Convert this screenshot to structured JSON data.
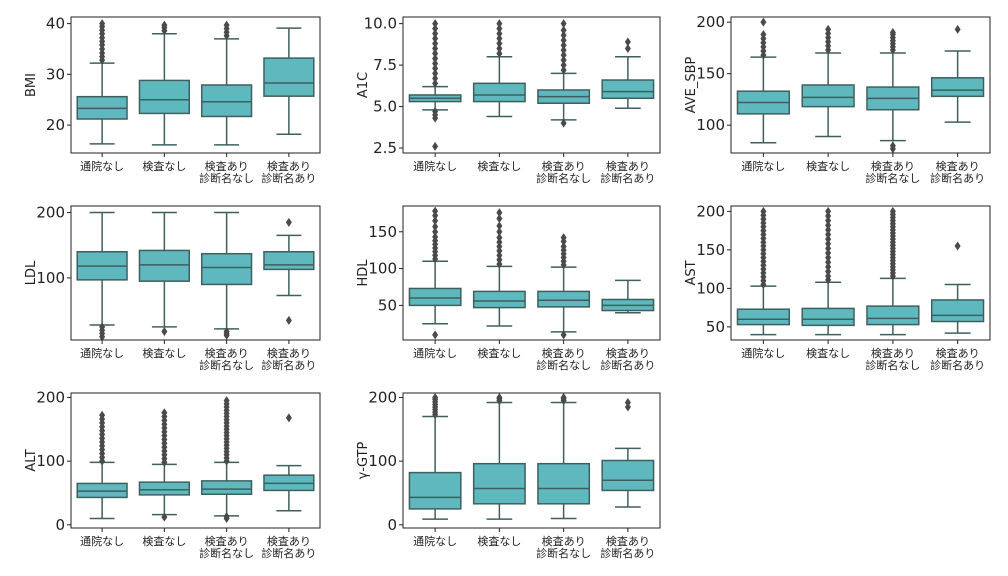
{
  "chart_data": [
    {
      "type": "boxplot",
      "ylabel": "BMI",
      "ylim": [
        14.5,
        41.3
      ],
      "yticks": [
        20,
        30,
        40
      ],
      "categories": [
        "通院なし",
        "検査なし",
        "検査あり\n診断名なし",
        "検査あり\n診断名あり"
      ],
      "boxes": [
        {
          "whislo": 16.3,
          "q1": 21.2,
          "med": 23.3,
          "q3": 25.6,
          "whishi": 32.2,
          "fliers": [
            32.8,
            33.5,
            34.2,
            35.0,
            35.8,
            36.5,
            37.2,
            38.0,
            38.7,
            39.4,
            40.0
          ]
        },
        {
          "whislo": 16.1,
          "q1": 22.3,
          "med": 25.0,
          "q3": 28.8,
          "whishi": 38.0,
          "fliers": [
            38.6,
            39.2,
            39.7
          ]
        },
        {
          "whislo": 16.1,
          "q1": 21.7,
          "med": 24.6,
          "q3": 27.9,
          "whishi": 37.0,
          "fliers": [
            37.6,
            38.3,
            39.0,
            39.7
          ]
        },
        {
          "whislo": 18.2,
          "q1": 25.7,
          "med": 28.3,
          "q3": 33.2,
          "whishi": 39.1,
          "fliers": []
        }
      ]
    },
    {
      "type": "boxplot",
      "ylabel": "A1C",
      "ylim": [
        2.2,
        10.4
      ],
      "yticks": [
        2.5,
        5.0,
        7.5,
        10.0
      ],
      "categories": [
        "通院なし",
        "検査なし",
        "検査あり\n診断名なし",
        "検査あり\n診断名あり"
      ],
      "boxes": [
        {
          "whislo": 4.8,
          "q1": 5.3,
          "med": 5.5,
          "q3": 5.7,
          "whishi": 6.2,
          "fliers": [
            2.6,
            4.3,
            4.5,
            4.7,
            6.4,
            6.7,
            7.0,
            7.3,
            7.6,
            7.9,
            8.2,
            8.5,
            8.8,
            9.1,
            9.4,
            9.7,
            10.0
          ]
        },
        {
          "whislo": 4.4,
          "q1": 5.3,
          "med": 5.7,
          "q3": 6.4,
          "whishi": 8.0,
          "fliers": [
            8.2,
            8.5,
            8.8,
            9.1,
            9.4,
            9.7,
            10.0
          ]
        },
        {
          "whislo": 4.2,
          "q1": 5.2,
          "med": 5.6,
          "q3": 6.0,
          "whishi": 7.0,
          "fliers": [
            4.0,
            7.2,
            7.5,
            7.8,
            8.1,
            8.4,
            8.7,
            9.0,
            9.3,
            9.6,
            10.0
          ]
        },
        {
          "whislo": 4.9,
          "q1": 5.5,
          "med": 5.9,
          "q3": 6.6,
          "whishi": 8.0,
          "fliers": [
            8.5,
            8.9
          ]
        }
      ]
    },
    {
      "type": "boxplot",
      "ylabel": "AVE_SBP",
      "ylim": [
        73,
        205
      ],
      "yticks": [
        100,
        150,
        200
      ],
      "categories": [
        "通院なし",
        "検査なし",
        "検査あり\n診断名なし",
        "検査あり\n診断名あり"
      ],
      "boxes": [
        {
          "whislo": 83,
          "q1": 111,
          "med": 122,
          "q3": 133,
          "whishi": 166,
          "fliers": [
            168,
            172,
            176,
            180,
            184,
            188,
            200
          ]
        },
        {
          "whislo": 89,
          "q1": 118,
          "med": 127,
          "q3": 139,
          "whishi": 170,
          "fliers": [
            173,
            177,
            181,
            185,
            189,
            193
          ]
        },
        {
          "whislo": 85,
          "q1": 115,
          "med": 126,
          "q3": 137,
          "whishi": 170,
          "fliers": [
            77,
            80,
            173,
            176,
            179,
            182,
            185,
            188,
            190
          ]
        },
        {
          "whislo": 103,
          "q1": 128,
          "med": 134,
          "q3": 146,
          "whishi": 172,
          "fliers": [
            193
          ]
        }
      ]
    },
    {
      "type": "boxplot",
      "ylabel": "LDL",
      "ylim": [
        5,
        210
      ],
      "yticks": [
        100,
        200
      ],
      "categories": [
        "通院なし",
        "検査なし",
        "検査あり\n診断名なし",
        "検査あり\n診断名あり"
      ],
      "boxes": [
        {
          "whislo": 28,
          "q1": 97,
          "med": 118,
          "q3": 140,
          "whishi": 200,
          "fliers": [
            10,
            15,
            20,
            25
          ]
        },
        {
          "whislo": 25,
          "q1": 95,
          "med": 120,
          "q3": 142,
          "whishi": 200,
          "fliers": [
            18
          ]
        },
        {
          "whislo": 22,
          "q1": 90,
          "med": 116,
          "q3": 137,
          "whishi": 200,
          "fliers": [
            12,
            15,
            18
          ]
        },
        {
          "whislo": 73,
          "q1": 113,
          "med": 120,
          "q3": 140,
          "whishi": 165,
          "fliers": [
            35,
            185
          ]
        }
      ]
    },
    {
      "type": "boxplot",
      "ylabel": "HDL",
      "ylim": [
        3,
        185
      ],
      "yticks": [
        50,
        100,
        150
      ],
      "categories": [
        "通院なし",
        "検査なし",
        "検査あり\n診断名なし",
        "検査あり\n診断名あり"
      ],
      "boxes": [
        {
          "whislo": 25,
          "q1": 50,
          "med": 60,
          "q3": 73,
          "whishi": 110,
          "fliers": [
            10,
            113,
            118,
            123,
            128,
            133,
            138,
            143,
            150,
            157,
            165,
            172,
            178
          ]
        },
        {
          "whislo": 22,
          "q1": 47,
          "med": 56,
          "q3": 69,
          "whishi": 103,
          "fliers": [
            106,
            112,
            118,
            124,
            130,
            136,
            142,
            150,
            158,
            168,
            176
          ]
        },
        {
          "whislo": 14,
          "q1": 48,
          "med": 57,
          "q3": 69,
          "whishi": 102,
          "fliers": [
            10,
            105,
            110,
            115,
            120,
            125,
            130,
            137,
            142
          ]
        },
        {
          "whislo": 40,
          "q1": 43,
          "med": 50,
          "q3": 58,
          "whishi": 84,
          "fliers": []
        }
      ]
    },
    {
      "type": "boxplot",
      "ylabel": "AST",
      "ylim": [
        33,
        207
      ],
      "yticks": [
        50,
        100,
        150,
        200
      ],
      "categories": [
        "通院なし",
        "検査なし",
        "検査あり\n診断名なし",
        "検査あり\n診断名あり"
      ],
      "boxes": [
        {
          "whislo": 40,
          "q1": 53,
          "med": 60,
          "q3": 73,
          "whishi": 103,
          "fliers": [
            105,
            110,
            115,
            120,
            125,
            130,
            135,
            140,
            145,
            150,
            155,
            160,
            165,
            170,
            175,
            180,
            185,
            190,
            195,
            200
          ]
        },
        {
          "whislo": 40,
          "q1": 52,
          "med": 60,
          "q3": 74,
          "whishi": 108,
          "fliers": [
            111,
            116,
            122,
            128,
            134,
            140,
            146,
            152,
            158,
            164,
            170,
            176,
            182,
            188,
            194,
            200
          ]
        },
        {
          "whislo": 40,
          "q1": 53,
          "med": 61,
          "q3": 77,
          "whishi": 113,
          "fliers": [
            116,
            120,
            124,
            128,
            132,
            136,
            140,
            144,
            148,
            152,
            156,
            160,
            164,
            168,
            172,
            176,
            180,
            184,
            188,
            192,
            196,
            200
          ]
        },
        {
          "whislo": 42,
          "q1": 57,
          "med": 65,
          "q3": 85,
          "whishi": 105,
          "fliers": [
            155
          ]
        }
      ]
    },
    {
      "type": "boxplot",
      "ylabel": "ALT",
      "ylim": [
        -5,
        207
      ],
      "yticks": [
        0,
        100,
        200
      ],
      "categories": [
        "通院なし",
        "検査なし",
        "検査あり\n診断名なし",
        "検査あり\n診断名あり"
      ],
      "boxes": [
        {
          "whislo": 10,
          "q1": 43,
          "med": 53,
          "q3": 65,
          "whishi": 98,
          "fliers": [
            100,
            106,
            112,
            118,
            124,
            130,
            136,
            142,
            148,
            154,
            160,
            166,
            172
          ]
        },
        {
          "whislo": 16,
          "q1": 47,
          "med": 55,
          "q3": 67,
          "whishi": 95,
          "fliers": [
            12,
            98,
            104,
            110,
            116,
            122,
            128,
            134,
            140,
            146,
            152,
            158,
            164,
            170,
            176
          ]
        },
        {
          "whislo": 14,
          "q1": 48,
          "med": 56,
          "q3": 69,
          "whishi": 98,
          "fliers": [
            10,
            13,
            100,
            105,
            110,
            115,
            120,
            125,
            130,
            135,
            140,
            145,
            150,
            155,
            160,
            165,
            170,
            175,
            180,
            185,
            190,
            195
          ]
        },
        {
          "whislo": 22,
          "q1": 54,
          "med": 65,
          "q3": 78,
          "whishi": 93,
          "fliers": [
            168
          ]
        }
      ]
    },
    {
      "type": "boxplot",
      "ylabel": "γ-GTP",
      "ylim": [
        -5,
        207
      ],
      "yticks": [
        0,
        100,
        200
      ],
      "categories": [
        "通院なし",
        "検査なし",
        "検査あり\n診断名なし",
        "検査あり\n診断名あり"
      ],
      "boxes": [
        {
          "whislo": 9,
          "q1": 25,
          "med": 43,
          "q3": 82,
          "whishi": 170,
          "fliers": [
            173,
            177,
            181,
            185,
            189,
            193,
            197,
            200
          ]
        },
        {
          "whislo": 9,
          "q1": 33,
          "med": 57,
          "q3": 96,
          "whishi": 192,
          "fliers": [
            195,
            198,
            200
          ]
        },
        {
          "whislo": 10,
          "q1": 33,
          "med": 57,
          "q3": 96,
          "whishi": 192,
          "fliers": [
            195,
            198,
            200
          ]
        },
        {
          "whislo": 28,
          "q1": 54,
          "med": 70,
          "q3": 101,
          "whishi": 120,
          "fliers": [
            185,
            192
          ]
        }
      ]
    }
  ],
  "style": {
    "box_color": "#5fb8bd",
    "line_color": "#3f5f5f",
    "flier_color": "#4a4a4a"
  }
}
